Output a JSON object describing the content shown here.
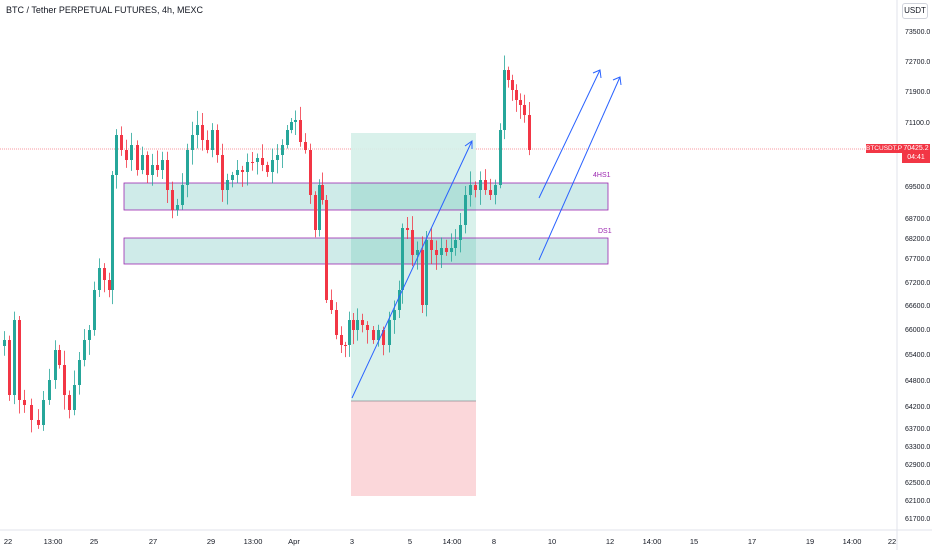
{
  "header": {
    "title": "BTC / Tether PERPETUAL FUTURES, 4h, MEXC",
    "currency_button": "USDT"
  },
  "price_axis": {
    "labels": [
      "73500.0",
      "72700.0",
      "71900.0",
      "71100.0",
      "69500.0",
      "68700.0",
      "68200.0",
      "67700.0",
      "67200.0",
      "66600.0",
      "66000.0",
      "65400.0",
      "64800.0",
      "64200.0",
      "63700.0",
      "63300.0",
      "62900.0",
      "62500.0",
      "62100.0",
      "61700.0"
    ],
    "current_symbol": "BTCUSDT.P",
    "current_price": "70425.2",
    "countdown": "04:41"
  },
  "time_axis": {
    "labels": [
      "22",
      "13:00",
      "25",
      "27",
      "29",
      "13:00",
      "Apr",
      "3",
      "5",
      "14:00",
      "8",
      "10",
      "12",
      "14:00",
      "15",
      "17",
      "19",
      "14:00",
      "22"
    ]
  },
  "zones": {
    "upper_label": "4HS1",
    "lower_label": "DS1"
  },
  "colors": {
    "up": "#26a69a",
    "down": "#f23645",
    "zone_border": "#9c27b0",
    "arrow": "#2962ff"
  }
}
